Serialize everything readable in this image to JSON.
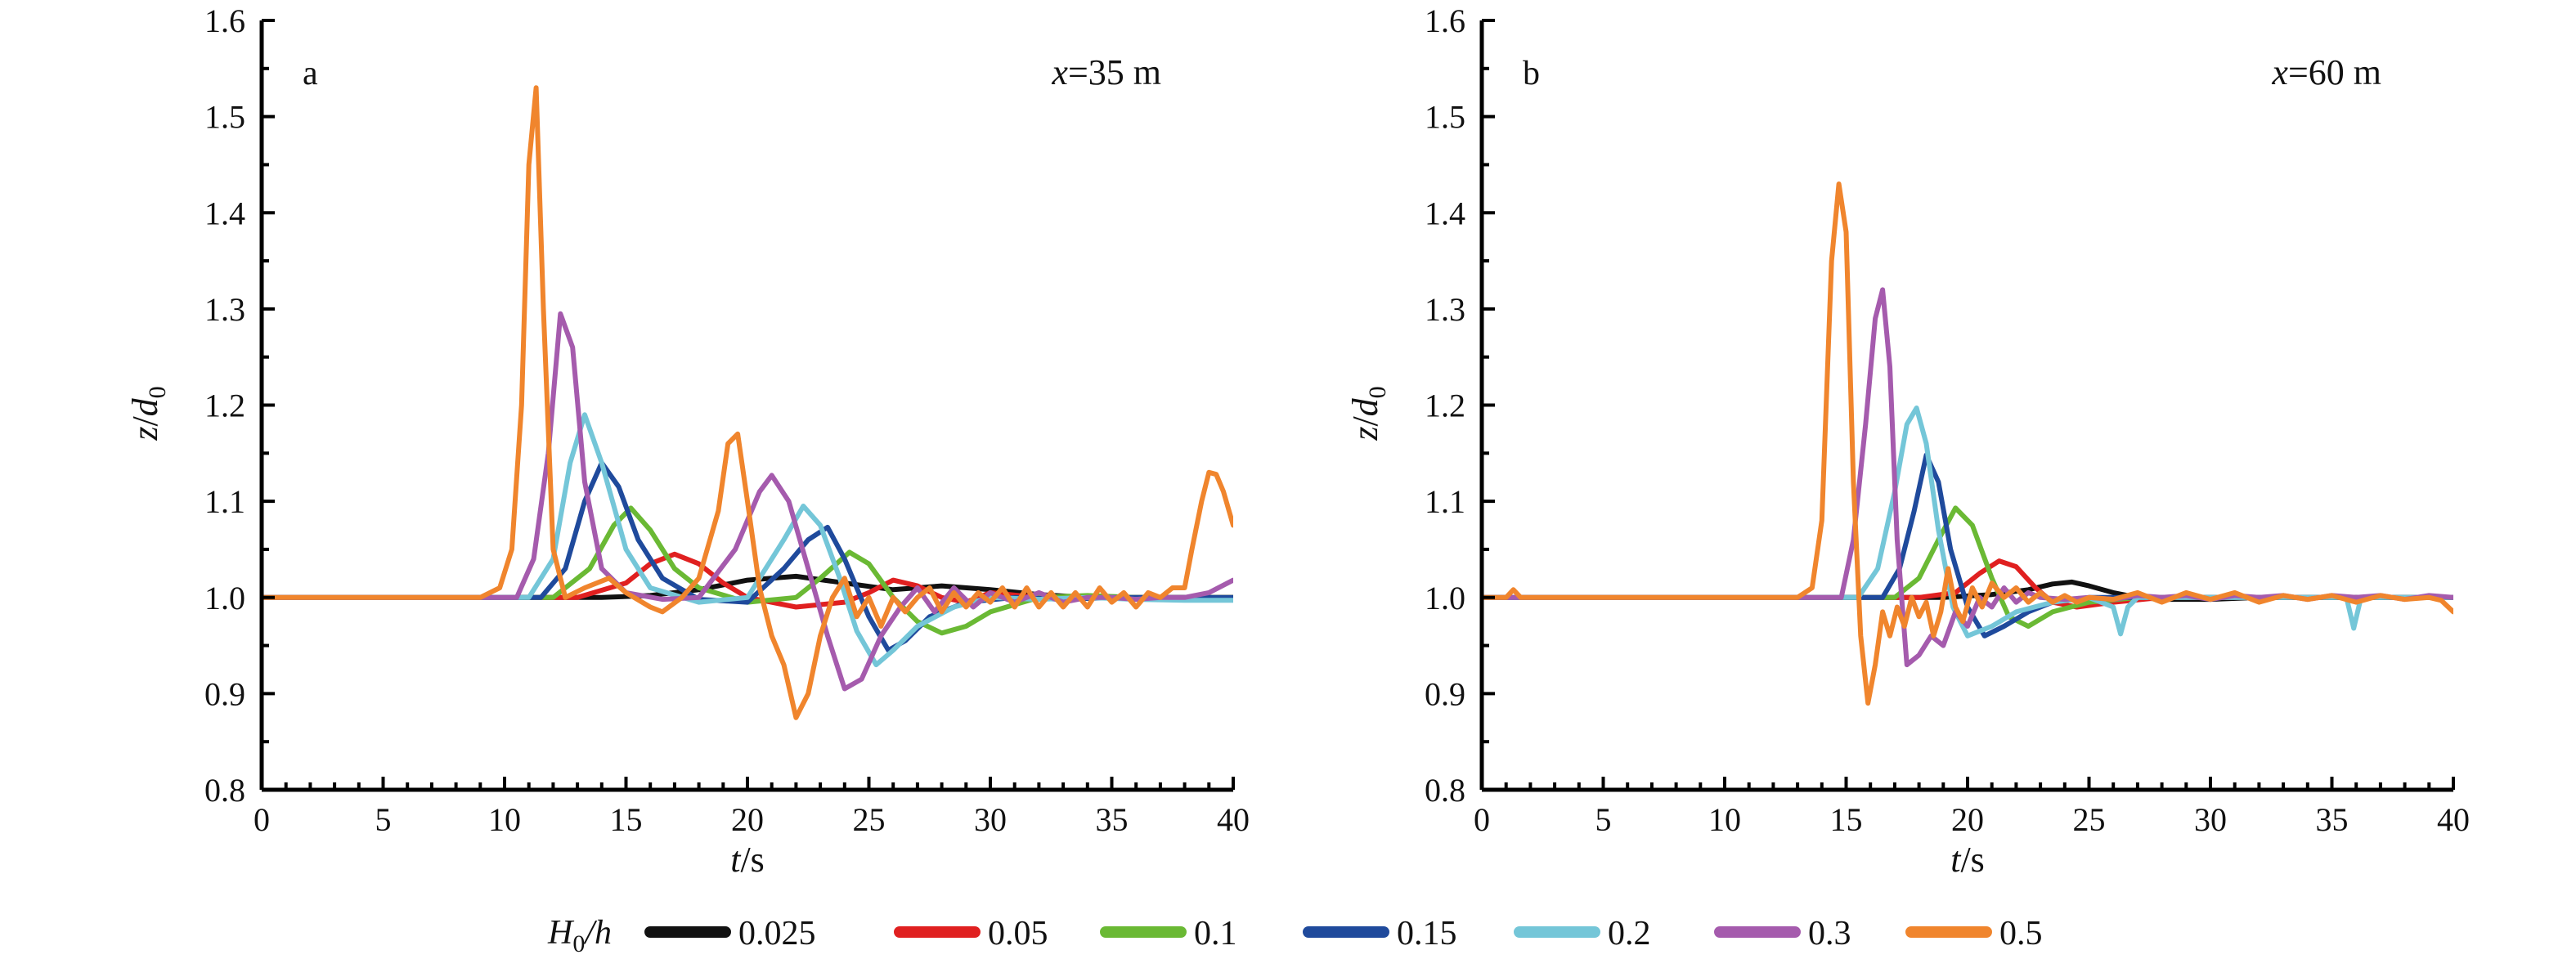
{
  "chart_data": [
    {
      "type": "line",
      "panel_label": "a",
      "annotation": "x=35 m",
      "annotation_parts": [
        "x",
        "=35 m"
      ],
      "xlabel": "t/s",
      "ylabel": "z/d0",
      "xlim": [
        0,
        40
      ],
      "ylim": [
        0.8,
        1.6
      ],
      "xticks": [
        0,
        5,
        10,
        15,
        20,
        25,
        30,
        35,
        40
      ],
      "yticks": [
        0.8,
        0.9,
        1.0,
        1.1,
        1.2,
        1.3,
        1.4,
        1.5,
        1.6
      ],
      "xtick_labels": [
        "0",
        "5",
        "10",
        "15",
        "20",
        "25",
        "30",
        "35",
        "40"
      ],
      "ytick_labels": [
        "0.8",
        "0.9",
        "1.0",
        "1.1",
        "1.2",
        "1.3",
        "1.4",
        "1.5",
        "1.6"
      ],
      "grid": false,
      "series": [
        {
          "name": "0.025",
          "color": "#111111",
          "x": [
            0,
            14,
            16,
            18,
            20,
            22,
            24,
            26,
            28,
            30,
            32,
            34,
            36,
            38,
            40
          ],
          "y": [
            1.0,
            1.0,
            1.002,
            1.008,
            1.018,
            1.022,
            1.015,
            1.008,
            1.012,
            1.008,
            1.003,
            1.0,
            1.0,
            1.0,
            1.0
          ]
        },
        {
          "name": "0.05",
          "color": "#e02020",
          "x": [
            0,
            13,
            15,
            16,
            17,
            18,
            19,
            20,
            22,
            24,
            25,
            26,
            27,
            28,
            29,
            30,
            32,
            34,
            36,
            38,
            40
          ],
          "y": [
            1.0,
            1.0,
            1.015,
            1.035,
            1.045,
            1.035,
            1.015,
            1.0,
            0.99,
            0.995,
            1.005,
            1.018,
            1.012,
            1.0,
            0.995,
            1.005,
            1.0,
            1.0,
            1.0,
            1.0,
            1.0
          ]
        },
        {
          "name": "0.1",
          "color": "#6ab934",
          "x": [
            0,
            12,
            13.5,
            14.5,
            15.2,
            16,
            17,
            18,
            20,
            22,
            23,
            24.2,
            25,
            26,
            27,
            28,
            29,
            30,
            32,
            34,
            36,
            38,
            40
          ],
          "y": [
            1.0,
            1.0,
            1.03,
            1.075,
            1.093,
            1.07,
            1.03,
            1.01,
            0.995,
            1.0,
            1.02,
            1.047,
            1.035,
            1.0,
            0.975,
            0.963,
            0.97,
            0.985,
            1.0,
            1.002,
            1.0,
            1.0,
            1.0
          ]
        },
        {
          "name": "0.15",
          "color": "#1f4a9c",
          "x": [
            0,
            11.5,
            12.5,
            13.3,
            14,
            14.7,
            15.5,
            16.5,
            18,
            20,
            21.5,
            22.5,
            23.3,
            24,
            25,
            25.8,
            26.5,
            27.5,
            29,
            31,
            33,
            35,
            40
          ],
          "y": [
            1.0,
            1.0,
            1.03,
            1.1,
            1.14,
            1.115,
            1.06,
            1.02,
            0.998,
            0.995,
            1.03,
            1.06,
            1.073,
            1.04,
            0.98,
            0.945,
            0.955,
            0.98,
            0.995,
            1.0,
            0.998,
            1.0,
            1.0
          ]
        },
        {
          "name": "0.2",
          "color": "#74c6d8",
          "x": [
            0,
            11,
            12,
            12.7,
            13.3,
            14,
            15,
            16,
            18,
            20,
            21.5,
            22.3,
            23,
            23.8,
            24.5,
            25.3,
            26,
            27,
            28.5,
            30,
            32,
            34,
            36,
            38,
            40
          ],
          "y": [
            1.0,
            1.0,
            1.04,
            1.14,
            1.19,
            1.14,
            1.05,
            1.01,
            0.995,
            1.0,
            1.06,
            1.095,
            1.075,
            1.02,
            0.965,
            0.93,
            0.945,
            0.97,
            0.99,
            1.0,
            0.998,
            1.0,
            0.998,
            0.997,
            0.997
          ]
        },
        {
          "name": "0.3",
          "color": "#a55bad",
          "x": [
            0,
            10.5,
            11.2,
            11.8,
            12.3,
            12.8,
            13.3,
            14,
            15,
            16.5,
            18,
            19.5,
            20.5,
            21,
            21.7,
            22.5,
            23.3,
            24,
            24.7,
            25.5,
            26.3,
            27,
            27.7,
            28.5,
            29.3,
            30,
            31,
            32,
            33,
            34,
            35,
            36,
            37,
            38,
            39,
            40
          ],
          "y": [
            1.0,
            1.0,
            1.04,
            1.15,
            1.295,
            1.26,
            1.12,
            1.03,
            1.005,
            0.998,
            1.0,
            1.05,
            1.11,
            1.127,
            1.1,
            1.03,
            0.96,
            0.905,
            0.915,
            0.96,
            0.99,
            1.01,
            0.985,
            1.01,
            0.99,
            1.005,
            0.995,
            1.005,
            0.995,
            1.0,
            1.0,
            0.998,
            1.0,
            1.0,
            1.005,
            1.018
          ]
        },
        {
          "name": "0.5",
          "color": "#f0852d",
          "x": [
            0,
            9,
            9.8,
            10.3,
            10.7,
            11.0,
            11.3,
            11.6,
            12.0,
            12.5,
            13.3,
            14.3,
            15,
            16,
            16.5,
            17.3,
            18,
            18.8,
            19.2,
            19.6,
            20,
            20.5,
            21,
            21.5,
            22,
            22.5,
            23,
            23.5,
            24,
            24.5,
            25,
            25.5,
            26,
            26.5,
            27,
            27.5,
            28,
            28.5,
            29,
            29.5,
            30,
            30.5,
            31,
            31.5,
            32,
            32.5,
            33,
            33.5,
            34,
            34.5,
            35,
            35.5,
            36,
            36.5,
            37,
            37.5,
            38,
            38.3,
            38.7,
            39,
            39.3,
            39.6,
            40
          ],
          "y": [
            1.0,
            1.0,
            1.01,
            1.05,
            1.2,
            1.45,
            1.53,
            1.3,
            1.05,
            1.0,
            1.01,
            1.02,
            1.005,
            0.99,
            0.985,
            1.0,
            1.02,
            1.09,
            1.16,
            1.17,
            1.1,
            1.01,
            0.96,
            0.93,
            0.875,
            0.9,
            0.96,
            1.0,
            1.02,
            0.98,
            1.0,
            0.97,
            1.0,
            0.985,
            1.0,
            1.01,
            0.985,
            1.005,
            0.99,
            1.005,
            0.995,
            1.01,
            0.99,
            1.01,
            0.99,
            1.005,
            0.99,
            1.005,
            0.99,
            1.01,
            0.995,
            1.005,
            0.99,
            1.005,
            1.0,
            1.01,
            1.01,
            1.05,
            1.1,
            1.13,
            1.128,
            1.11,
            1.075
          ]
        }
      ]
    },
    {
      "type": "line",
      "panel_label": "b",
      "annotation": "x=60 m",
      "annotation_parts": [
        "x",
        "=60 m"
      ],
      "xlabel": "t/s",
      "ylabel": "z/d0",
      "xlim": [
        0,
        40
      ],
      "ylim": [
        0.8,
        1.6
      ],
      "xticks": [
        0,
        5,
        10,
        15,
        20,
        25,
        30,
        35,
        40
      ],
      "yticks": [
        0.8,
        0.9,
        1.0,
        1.1,
        1.2,
        1.3,
        1.4,
        1.5,
        1.6
      ],
      "xtick_labels": [
        "0",
        "5",
        "10",
        "15",
        "20",
        "25",
        "30",
        "35",
        "40"
      ],
      "ytick_labels": [
        "0.8",
        "0.9",
        "1.0",
        "1.1",
        "1.2",
        "1.3",
        "1.4",
        "1.5",
        "1.6"
      ],
      "grid": false,
      "series": [
        {
          "name": "0.025",
          "color": "#111111",
          "x": [
            0,
            19,
            21,
            22.5,
            23.5,
            24.3,
            25,
            26,
            27,
            28,
            30,
            32,
            34,
            36,
            38,
            40
          ],
          "y": [
            1.0,
            1.0,
            1.003,
            1.008,
            1.014,
            1.016,
            1.012,
            1.005,
            1.0,
            0.998,
            0.998,
            1.0,
            1.0,
            1.0,
            1.0,
            1.0
          ]
        },
        {
          "name": "0.05",
          "color": "#e02020",
          "x": [
            0,
            18,
            19.5,
            20.5,
            21.3,
            22,
            22.8,
            23.5,
            24.5,
            26,
            28,
            30,
            32,
            34,
            36,
            38,
            40
          ],
          "y": [
            1.0,
            1.0,
            1.005,
            1.025,
            1.038,
            1.032,
            1.01,
            0.995,
            0.99,
            0.995,
            1.0,
            1.0,
            1.0,
            1.0,
            1.0,
            1.0,
            1.0
          ]
        },
        {
          "name": "0.1",
          "color": "#6ab934",
          "x": [
            0,
            17,
            18,
            18.8,
            19.5,
            20.2,
            21,
            21.7,
            22.5,
            23.5,
            25,
            27,
            29,
            31,
            34,
            37,
            40
          ],
          "y": [
            1.0,
            1.0,
            1.02,
            1.06,
            1.093,
            1.075,
            1.02,
            0.98,
            0.97,
            0.985,
            0.995,
            1.0,
            1.0,
            1.0,
            1.0,
            1.0,
            1.0
          ]
        },
        {
          "name": "0.15",
          "color": "#1f4a9c",
          "x": [
            0,
            16.5,
            17.2,
            17.8,
            18.3,
            18.8,
            19.3,
            20,
            20.7,
            21.5,
            22.5,
            23.5,
            25,
            27,
            30,
            33,
            36,
            40
          ],
          "y": [
            1.0,
            1.0,
            1.03,
            1.09,
            1.148,
            1.12,
            1.05,
            0.99,
            0.96,
            0.97,
            0.985,
            0.995,
            1.0,
            1.0,
            1.0,
            1.0,
            1.0,
            1.0
          ]
        },
        {
          "name": "0.2",
          "color": "#74c6d8",
          "x": [
            0,
            15.5,
            16.3,
            17,
            17.5,
            17.9,
            18.3,
            18.8,
            19.4,
            20,
            21,
            22,
            23.5,
            25,
            26,
            26.3,
            26.6,
            27,
            28,
            30,
            32,
            34,
            35.6,
            35.9,
            36.2,
            37,
            38,
            40
          ],
          "y": [
            1.0,
            1.0,
            1.03,
            1.11,
            1.18,
            1.197,
            1.16,
            1.07,
            0.99,
            0.96,
            0.97,
            0.985,
            0.995,
            1.0,
            0.99,
            0.962,
            0.99,
            1.0,
            1.0,
            1.0,
            1.0,
            1.0,
            1.0,
            0.968,
            1.0,
            1.0,
            1.0,
            1.0
          ]
        },
        {
          "name": "0.3",
          "color": "#a55bad",
          "x": [
            0,
            14.8,
            15.3,
            15.8,
            16.2,
            16.5,
            16.8,
            17.1,
            17.5,
            18,
            18.5,
            19,
            19.5,
            20,
            20.5,
            21,
            21.5,
            22,
            22.5,
            23,
            24,
            25,
            26,
            27,
            28,
            29,
            30,
            31,
            32,
            33,
            34,
            35,
            36,
            37,
            38,
            39,
            40
          ],
          "y": [
            1.0,
            1.0,
            1.06,
            1.18,
            1.29,
            1.32,
            1.24,
            1.06,
            0.93,
            0.94,
            0.96,
            0.95,
            0.985,
            0.97,
            1.0,
            0.99,
            1.01,
            0.995,
            1.005,
            1.0,
            0.998,
            1.0,
            0.998,
            1.002,
            1.0,
            1.002,
            0.998,
            1.002,
            1.0,
            1.002,
            0.998,
            1.002,
            1.0,
            1.002,
            0.998,
            1.002,
            1.0
          ]
        },
        {
          "name": "0.5",
          "color": "#f0852d",
          "x": [
            0,
            1.0,
            1.3,
            1.6,
            13,
            13.6,
            14,
            14.4,
            14.7,
            15,
            15.3,
            15.6,
            15.9,
            16.2,
            16.5,
            16.8,
            17.1,
            17.4,
            17.7,
            18,
            18.3,
            18.6,
            18.9,
            19.2,
            19.5,
            19.8,
            20.2,
            20.6,
            21,
            21.5,
            22,
            22.5,
            23,
            23.5,
            24,
            24.5,
            25,
            26,
            27,
            28,
            29,
            30,
            31,
            32,
            33,
            34,
            35,
            36,
            37,
            38,
            39,
            39.5,
            40
          ],
          "y": [
            1.0,
            1.0,
            1.008,
            1.0,
            1.0,
            1.01,
            1.08,
            1.35,
            1.43,
            1.38,
            1.12,
            0.96,
            0.89,
            0.93,
            0.985,
            0.96,
            0.99,
            0.97,
            1.0,
            0.98,
            0.995,
            0.96,
            0.985,
            1.03,
            0.99,
            0.975,
            1.01,
            0.99,
            1.015,
            1.0,
            1.01,
            0.995,
            1.005,
            0.995,
            1.002,
            0.995,
            1.0,
            0.998,
            1.005,
            0.995,
            1.005,
            0.998,
            1.005,
            0.995,
            1.002,
            0.998,
            1.002,
            0.995,
            1.002,
            0.998,
            1.0,
            0.997,
            0.985
          ]
        }
      ]
    }
  ],
  "legend": {
    "title": "H0/h",
    "title_parts": [
      "H",
      "0",
      "/h"
    ],
    "items": [
      {
        "label": "0.025",
        "color": "#111111"
      },
      {
        "label": "0.05",
        "color": "#e02020"
      },
      {
        "label": "0.1",
        "color": "#6ab934"
      },
      {
        "label": "0.15",
        "color": "#1f4a9c"
      },
      {
        "label": "0.2",
        "color": "#74c6d8"
      },
      {
        "label": "0.3",
        "color": "#a55bad"
      },
      {
        "label": "0.5",
        "color": "#f0852d"
      }
    ]
  },
  "axis_label_parts": {
    "x": [
      "t",
      "/s"
    ],
    "y": [
      "z",
      "/",
      "d",
      "0"
    ]
  }
}
